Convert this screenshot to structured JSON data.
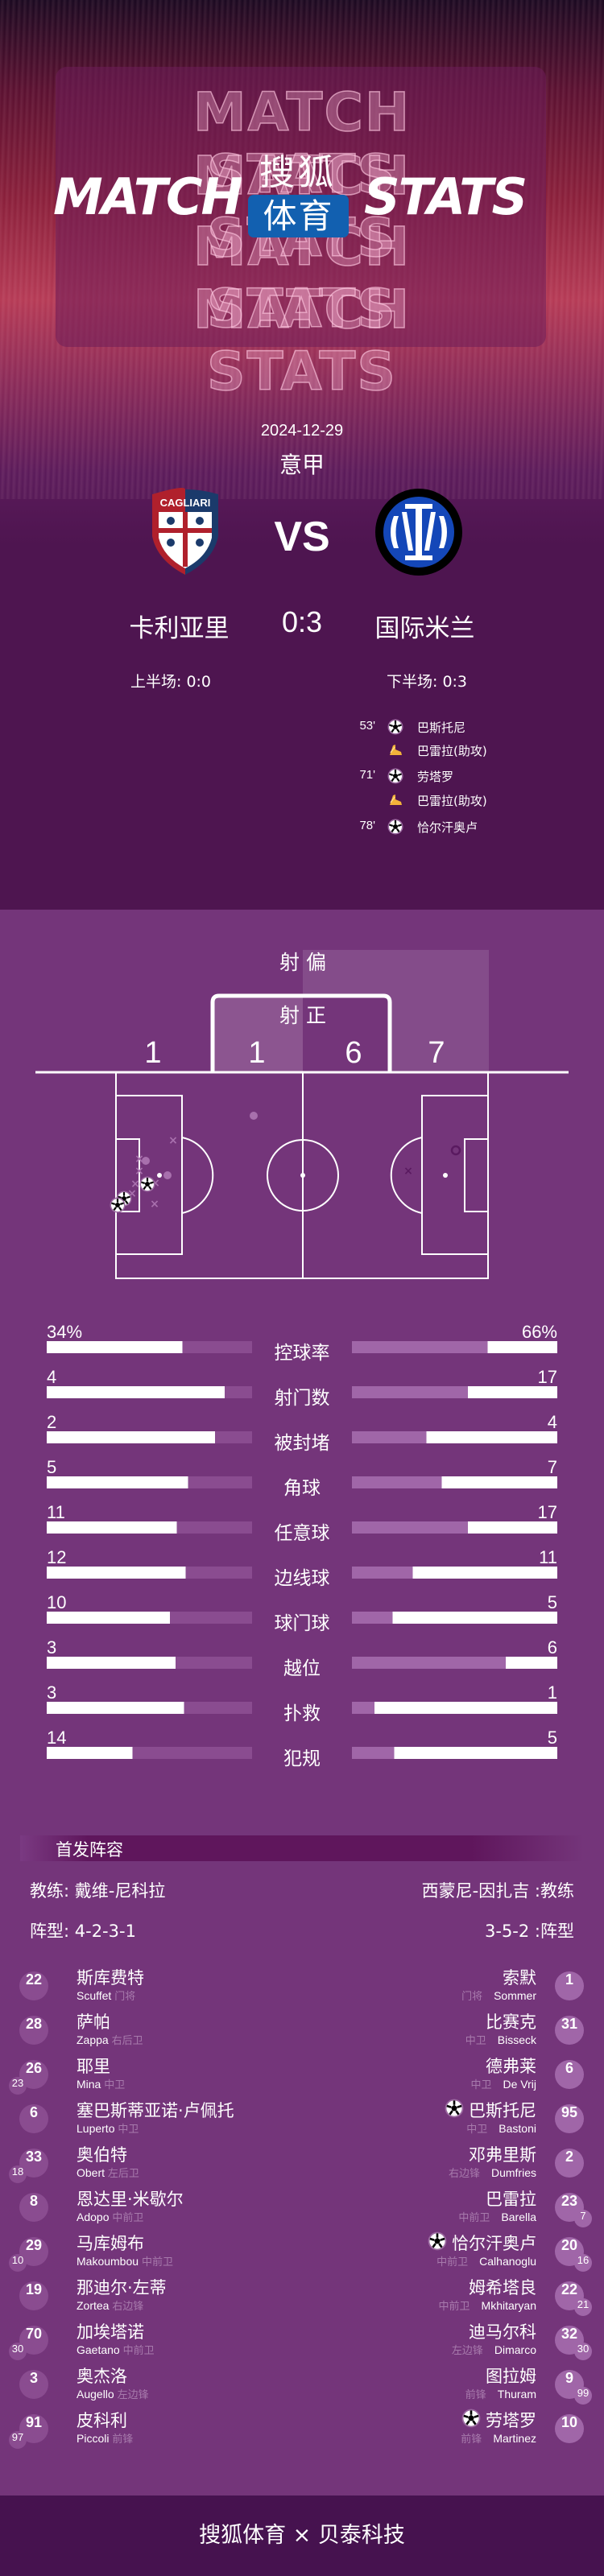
{
  "header": {
    "outline_text": "MATCH STATS",
    "title_left": "MATCH",
    "title_right": "STATS",
    "logo_top": "搜狐",
    "logo_bottom": "体育"
  },
  "match": {
    "date": "2024-12-29",
    "league": "意甲",
    "vs": "VS",
    "home": {
      "name": "卡利亚里",
      "crest_text": "CAGLIARI"
    },
    "away": {
      "name": "国际米兰"
    },
    "score": "0:3",
    "first_half": "上半场: 0:0",
    "second_half": "下半场: 0:3"
  },
  "events": [
    {
      "minute": "53'",
      "icon": "goal-ball-icon",
      "text": "巴斯托尼"
    },
    {
      "minute": "",
      "icon": "assist-boot-icon",
      "text": "巴雷拉(助攻)"
    },
    {
      "minute": "71'",
      "icon": "goal-ball-icon",
      "text": "劳塔罗"
    },
    {
      "minute": "",
      "icon": "assist-boot-icon",
      "text": "巴雷拉(助攻)"
    },
    {
      "minute": "78'",
      "icon": "goal-ball-icon",
      "text": "恰尔汗奥卢"
    }
  ],
  "shots": {
    "off_label": "射 偏",
    "on_label": "射 正",
    "home_off": "1",
    "home_on": "1",
    "away_on": "6",
    "away_off": "7"
  },
  "stats": [
    {
      "label": "控球率",
      "home": "34%",
      "away": "66%",
      "home_fill": 0.66,
      "away_fill": 0.66
    },
    {
      "label": "射门数",
      "home": "4",
      "away": "17",
      "home_fill": 0.867,
      "away_fill": 0.565
    },
    {
      "label": "被封堵",
      "home": "2",
      "away": "4",
      "home_fill": 0.82,
      "away_fill": 0.362
    },
    {
      "label": "角球",
      "home": "5",
      "away": "7",
      "home_fill": 0.689,
      "away_fill": 0.437
    },
    {
      "label": "任意球",
      "home": "11",
      "away": "17",
      "home_fill": 0.634,
      "away_fill": 0.565
    },
    {
      "label": "边线球",
      "home": "12",
      "away": "11",
      "home_fill": 0.677,
      "away_fill": 0.296
    },
    {
      "label": "球门球",
      "home": "10",
      "away": "5",
      "home_fill": 0.6,
      "away_fill": 0.199
    },
    {
      "label": "越位",
      "home": "3",
      "away": "6",
      "home_fill": 0.627,
      "away_fill": 0.749
    },
    {
      "label": "扑救",
      "home": "3",
      "away": "1",
      "home_fill": 0.668,
      "away_fill": 0.109
    },
    {
      "label": "犯规",
      "home": "14",
      "away": "5",
      "home_fill": 0.418,
      "away_fill": 0.206
    }
  ],
  "colors": {
    "bar_white": "#ffffff",
    "home_bar_bg": "#8a4c90",
    "away_bar_fill": "#a066a8",
    "section_bg": "#74357a",
    "top_bg": "#4e1550",
    "footer_bg": "#46124f",
    "logo_blue": "#1260b0"
  },
  "lineup": {
    "title": "首发阵容",
    "home_coach": "教练: 戴维-尼科拉",
    "away_coach": "西蒙尼-因扎吉 :教练",
    "home_formation": "阵型: 4-2-3-1",
    "away_formation": "3-5-2 :阵型",
    "home": [
      {
        "num": "22",
        "cn": "斯库费特",
        "en": "Scuffet",
        "pos": "门将"
      },
      {
        "num": "28",
        "cn": "萨帕",
        "en": "Zappa",
        "pos": "右后卫"
      },
      {
        "num": "26",
        "cn": "耶里",
        "en": "Mina",
        "pos": "中卫",
        "sub": "23"
      },
      {
        "num": "6",
        "cn": "塞巴斯蒂亚诺·卢佩托",
        "en": "Luperto",
        "pos": "中卫"
      },
      {
        "num": "33",
        "cn": "奥伯特",
        "en": "Obert",
        "pos": "左后卫",
        "sub": "18"
      },
      {
        "num": "8",
        "cn": "恩达里·米歇尔",
        "en": "Adopo",
        "pos": "中前卫"
      },
      {
        "num": "29",
        "cn": "马库姆布",
        "en": "Makoumbou",
        "pos": "中前卫",
        "sub": "10"
      },
      {
        "num": "19",
        "cn": "那迪尔·左蒂",
        "en": "Zortea",
        "pos": "右边锋"
      },
      {
        "num": "70",
        "cn": "加埃塔诺",
        "en": "Gaetano",
        "pos": "中前卫",
        "sub": "30"
      },
      {
        "num": "3",
        "cn": "奥杰洛",
        "en": "Augello",
        "pos": "左边锋"
      },
      {
        "num": "91",
        "cn": "皮科利",
        "en": "Piccoli",
        "pos": "前锋",
        "sub": "97"
      }
    ],
    "away": [
      {
        "num": "1",
        "cn": "索默",
        "en": "Sommer",
        "pos": "门将"
      },
      {
        "num": "31",
        "cn": "比赛克",
        "en": "Bisseck",
        "pos": "中卫"
      },
      {
        "num": "6",
        "cn": "德弗莱",
        "en": "De Vrij",
        "pos": "中卫"
      },
      {
        "num": "95",
        "cn": "巴斯托尼",
        "en": "Bastoni",
        "pos": "中卫",
        "goal": true
      },
      {
        "num": "2",
        "cn": "邓弗里斯",
        "en": "Dumfries",
        "pos": "右边锋"
      },
      {
        "num": "23",
        "cn": "巴雷拉",
        "en": "Barella",
        "pos": "中前卫",
        "sub": "7"
      },
      {
        "num": "20",
        "cn": "恰尔汗奥卢",
        "en": "Calhanoglu",
        "pos": "中前卫",
        "sub": "16",
        "goal": true
      },
      {
        "num": "22",
        "cn": "姆希塔良",
        "en": "Mkhitaryan",
        "pos": "中前卫",
        "sub": "21"
      },
      {
        "num": "32",
        "cn": "迪马尔科",
        "en": "Dimarco",
        "pos": "左边锋",
        "sub": "30"
      },
      {
        "num": "9",
        "cn": "图拉姆",
        "en": "Thuram",
        "pos": "前锋",
        "sub": "99"
      },
      {
        "num": "10",
        "cn": "劳塔罗",
        "en": "Martinez",
        "pos": "前锋",
        "goal": true
      }
    ]
  },
  "footer": {
    "text": "搜狐体育 × 贝泰科技"
  }
}
